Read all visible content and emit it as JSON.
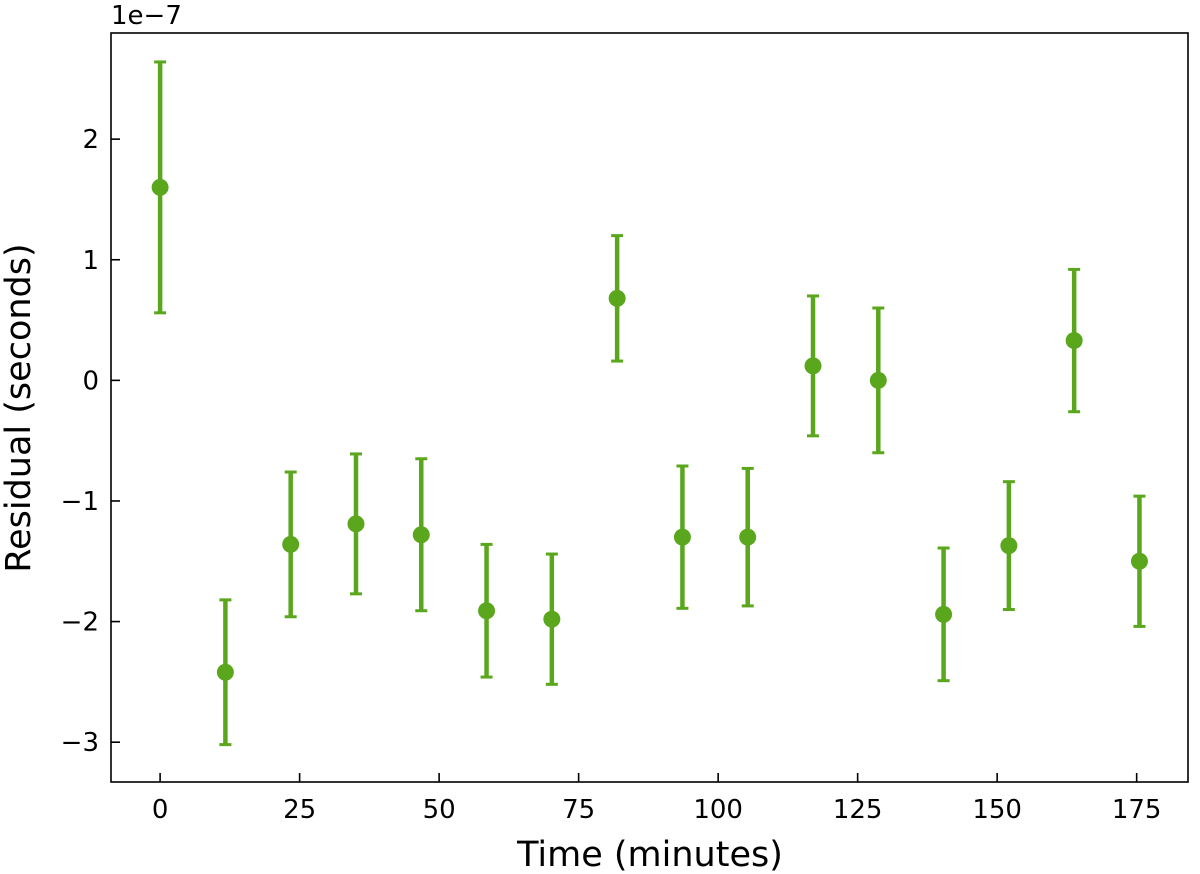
{
  "chart_data": {
    "type": "scatter",
    "title": "",
    "xlabel": "Time (minutes)",
    "ylabel": "Residual (seconds)",
    "y_offset_label": "1e−7",
    "xlim": [
      -8.8,
      184.2
    ],
    "ylim": [
      -3.33,
      2.88
    ],
    "x_ticks": [
      0,
      25,
      50,
      75,
      100,
      125,
      150,
      175
    ],
    "x_tick_labels": [
      "0",
      "25",
      "50",
      "75",
      "100",
      "125",
      "150",
      "175"
    ],
    "y_ticks": [
      -3,
      -2,
      -1,
      0,
      1,
      2
    ],
    "y_tick_labels": [
      "−3",
      "−2",
      "−1",
      "0",
      "1",
      "2"
    ],
    "grid": false,
    "legend": "none",
    "color": "#5aa61c",
    "series": [
      {
        "x": [
          0,
          11.7,
          23.4,
          35.1,
          46.8,
          58.5,
          70.2,
          81.9,
          93.6,
          105.3,
          117.0,
          128.7,
          140.4,
          152.1,
          163.8,
          175.5
        ],
        "y": [
          1.6,
          -2.42,
          -1.36,
          -1.19,
          -1.28,
          -1.91,
          -1.98,
          0.68,
          -1.3,
          -1.3,
          0.12,
          0.0,
          -1.94,
          -1.37,
          0.33,
          -1.5
        ],
        "err": [
          1.04,
          0.6,
          0.6,
          0.58,
          0.63,
          0.55,
          0.54,
          0.52,
          0.59,
          0.57,
          0.58,
          0.6,
          0.55,
          0.53,
          0.59,
          0.54
        ]
      }
    ]
  }
}
